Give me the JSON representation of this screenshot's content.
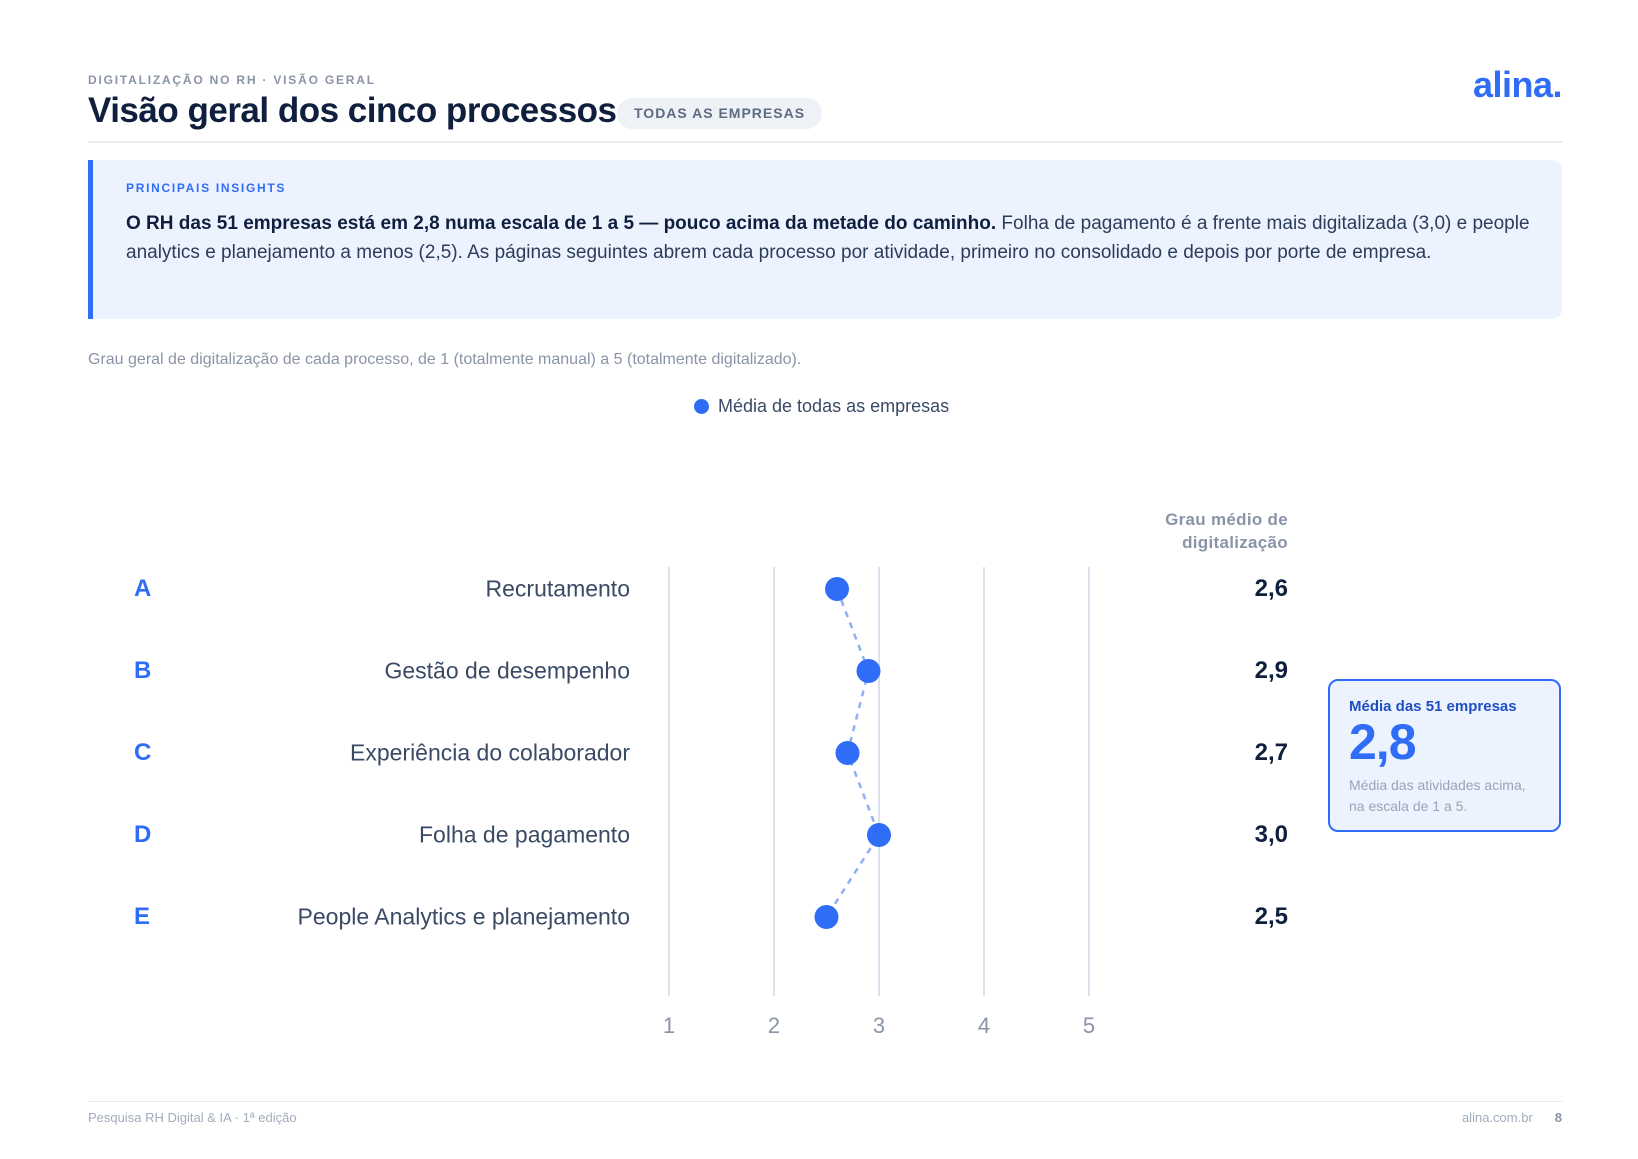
{
  "header": {
    "eyebrow": "DIGITALIZAÇÃO NO RH · VISÃO GERAL",
    "title": "Visão geral dos cinco processos",
    "filter_pill": "TODAS AS EMPRESAS",
    "logo": "alina."
  },
  "insights": {
    "label": "PRINCIPAIS INSIGHTS",
    "bold_text": "O RH das 51 empresas está em 2,8 numa escala de 1 a 5 — pouco acima da metade do caminho.",
    "text": " Folha de pagamento é a frente mais digitalizada (3,0) e people analytics e planejamento a menos (2,5). As páginas seguintes abrem cada processo por atividade, primeiro no consolidado e depois por porte de empresa."
  },
  "chart_subtitle": "Grau geral de digitalização de cada processo, de 1 (totalmente manual) a 5 (totalmente digitalizado).",
  "chart_data": {
    "type": "scatter",
    "legend": [
      "Média de todas as empresas"
    ],
    "legend_placement": "top-center",
    "value_column_header": "Grau médio de digitalização",
    "categories": [
      {
        "letter": "A",
        "name": "Recrutamento",
        "value": 2.6,
        "label": "2,6"
      },
      {
        "letter": "B",
        "name": "Gestão de desempenho",
        "value": 2.9,
        "label": "2,9"
      },
      {
        "letter": "C",
        "name": "Experiência do colaborador",
        "value": 2.7,
        "label": "2,7"
      },
      {
        "letter": "D",
        "name": "Folha de pagamento",
        "value": 3.0,
        "label": "3,0"
      },
      {
        "letter": "E",
        "name": "People Analytics e planejamento",
        "value": 2.5,
        "label": "2,5"
      }
    ],
    "series": [
      {
        "name": "Média de todas as empresas",
        "values": [
          2.6,
          2.9,
          2.7,
          3.0,
          2.5
        ]
      }
    ],
    "xlim": [
      1,
      5
    ],
    "xticks": [
      "1",
      "2",
      "3",
      "4",
      "5"
    ],
    "grid": true,
    "connector": "dashed",
    "colors": {
      "point": "#2f6df6",
      "connector": "#8fb0f2",
      "grid": "#dbe2ee",
      "tick": "#8a94a6"
    }
  },
  "average_card": {
    "label": "Média das 51 empresas",
    "value": "2,8",
    "note": "Média das atividades acima, na escala de 1 a 5."
  },
  "footer": {
    "left": "Pesquisa RH Digital & IA · 1ª edição",
    "site": "alina.com.br",
    "page": "8"
  }
}
